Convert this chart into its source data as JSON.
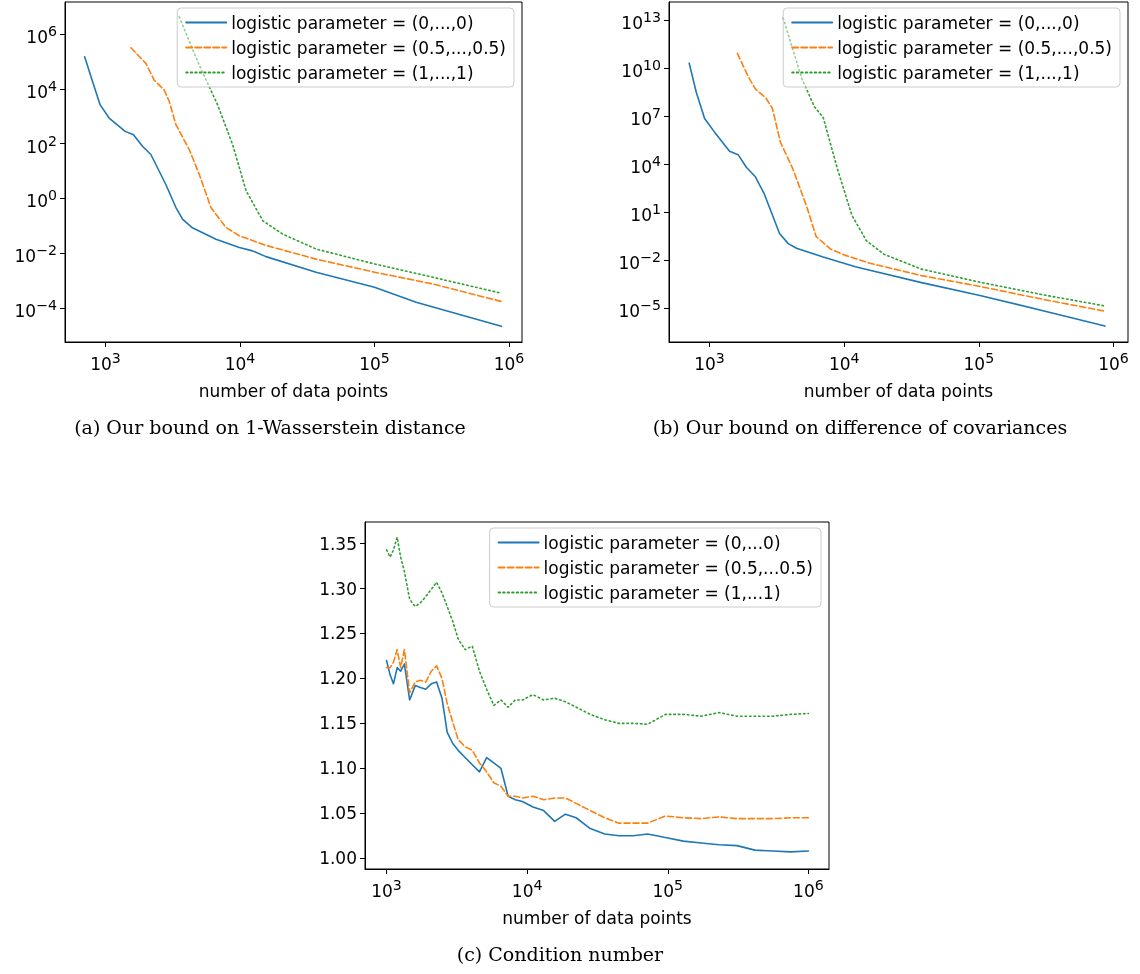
{
  "chart_data": [
    {
      "type": "line",
      "title": "(a) Our bound on 1-Wasserstein distance",
      "xlabel": "number of data points",
      "log": "xy",
      "legend": "top right",
      "xlim": [
        500,
        1250000
      ],
      "ylim": [
        5.6e-06,
        15000000
      ],
      "xticks": [
        {
          "value": 1000,
          "label": "10$^{3}$"
        },
        {
          "value": 10000,
          "label": "10$^{4}$"
        },
        {
          "value": 100000,
          "label": "10$^{5}$"
        },
        {
          "value": 1000000,
          "label": "10$^{6}$"
        }
      ],
      "yticks": [
        {
          "value": 0.0001,
          "label": "10$^{−4}$"
        },
        {
          "value": 0.01,
          "label": "10$^{−2}$"
        },
        {
          "value": 1,
          "label": "10$^{0}$"
        },
        {
          "value": 100,
          "label": "10$^{2}$"
        },
        {
          "value": 10000,
          "label": "10$^{4}$"
        },
        {
          "value": 1000000,
          "label": "10$^{6}$"
        }
      ],
      "series": [
        {
          "name": "logistic parameter = (0,...,0)",
          "color": "#1f77b4",
          "line_style": "solid",
          "x": [
            700,
            800,
            913,
            1065,
            1400,
            1615,
            1885,
            2175,
            2810,
            3340,
            3750,
            4390,
            6630,
            9890,
            12400,
            15600,
            36800,
            100000,
            204000,
            877000
          ],
          "values": [
            150000,
            19000,
            2600,
            860,
            280,
            210,
            80,
            40,
            3.2,
            0.46,
            0.17,
            0.086,
            0.032,
            0.016,
            0.012,
            0.0074,
            0.002,
            0.00056,
            0.00016,
            2.1e-05
          ]
        },
        {
          "name": "logistic parameter = (0.5,...,0.5)",
          "color": "#ff7f0e",
          "line_style": "dashed",
          "x": [
            1545,
            2000,
            2300,
            2735,
            2980,
            3340,
            4200,
            4980,
            6080,
            7870,
            9890,
            15600,
            36800,
            100000,
            272000,
            877000
          ],
          "values": [
            320000,
            85000,
            21000,
            9100,
            3470,
            490,
            60,
            7.5,
            0.46,
            0.086,
            0.043,
            0.019,
            0.006,
            0.002,
            0.00074,
            0.00017
          ]
        },
        {
          "name": "logistic parameter = (1,...,1)",
          "color": "#2ca02c",
          "line_style": "dotted",
          "x": [
            3530,
            4980,
            6820,
            8820,
            11100,
            14800,
            20800,
            36800,
            100000,
            272000,
            877000
          ],
          "values": [
            4300000,
            74000,
            2600,
            92,
            1.9,
            0.15,
            0.049,
            0.014,
            0.004,
            0.0013,
            0.00034
          ]
        }
      ]
    },
    {
      "type": "line",
      "title": "(b) Our bound on difference of covariances",
      "xlabel": "number of data points",
      "log": "xy",
      "legend": "top right",
      "xlim": [
        500,
        1280000
      ],
      "ylim": [
        7.8e-08,
        140000000000000
      ],
      "xticks": [
        {
          "value": 1000,
          "label": "10$^{3}$"
        },
        {
          "value": 10000,
          "label": "10$^{4}$"
        },
        {
          "value": 100000,
          "label": "10$^{5}$"
        },
        {
          "value": 1000000,
          "label": "10$^{6}$"
        }
      ],
      "yticks": [
        {
          "value": 1e-05,
          "label": "10$^{−5}$"
        },
        {
          "value": 0.01,
          "label": "10$^{−2}$"
        },
        {
          "value": 10,
          "label": "10$^{1}$"
        },
        {
          "value": 10000,
          "label": "10$^{4}$"
        },
        {
          "value": 10000000,
          "label": "10$^{7}$"
        },
        {
          "value": 10000000000,
          "label": "10$^{10}$"
        },
        {
          "value": 10000000000000,
          "label": "10$^{13}$"
        }
      ],
      "series": [
        {
          "name": "logistic parameter = (0,...,0)",
          "color": "#1f77b4",
          "line_style": "solid",
          "x": [
            706,
            798,
            919,
            1083,
            1408,
            1630,
            1876,
            2190,
            2550,
            3310,
            3840,
            4420,
            6980,
            12100,
            15500,
            37500,
            100000,
            310000,
            863000
          ],
          "values": [
            21000000000,
            310000000,
            7400000,
            1100000,
            66000,
            40000,
            6600,
            1660,
            140,
            0.47,
            0.11,
            0.057,
            0.016,
            0.004,
            0.0024,
            0.0004,
            6.6e-05,
            6.6e-06,
            7.7e-07
          ]
        },
        {
          "name": "logistic parameter = (0.5,...,0.5)",
          "color": "#ff7f0e",
          "line_style": "dashed",
          "x": [
            1610,
            1936,
            2190,
            2620,
            2930,
            3360,
            4160,
            5310,
            6180,
            7890,
            10070,
            15500,
            37500,
            100000,
            310000,
            863000
          ],
          "values": [
            85000000000,
            3100000000,
            510000000,
            140000000,
            31000000,
            240000,
            5100,
            18.6,
            0.31,
            0.051,
            0.021,
            0.0066,
            0.0011,
            0.00024,
            3.4e-05,
            6.6e-06
          ]
        },
        {
          "name": "logistic parameter = (1,...,1)",
          "color": "#2ca02c",
          "line_style": "dotted",
          "x": [
            3520,
            4840,
            6000,
            6980,
            8910,
            11400,
            14600,
            19700,
            37500,
            100000,
            310000,
            863000
          ],
          "values": [
            14000000000000,
            2400000000,
            40000000,
            8500000,
            5100,
            6.6,
            0.17,
            0.024,
            0.0028,
            0.00044,
            6.6e-05,
            1.4e-05
          ]
        }
      ]
    },
    {
      "type": "line",
      "title": "(c) Condition number",
      "xlabel": "number of data points",
      "log": "x",
      "legend": "top right",
      "xlim": [
        703,
        1400000
      ],
      "ylim": [
        0.988,
        1.374
      ],
      "xticks": [
        {
          "value": 1000,
          "label": "10$^{3}$"
        },
        {
          "value": 10000,
          "label": "10$^{4}$"
        },
        {
          "value": 100000,
          "label": "10$^{5}$"
        },
        {
          "value": 1000000,
          "label": "10$^{6}$"
        }
      ],
      "yticks": [
        {
          "value": 1,
          "label": "1.00"
        },
        {
          "value": 1.05,
          "label": "1.05"
        },
        {
          "value": 1.1,
          "label": "1.10"
        },
        {
          "value": 1.15,
          "label": "1.15"
        },
        {
          "value": 1.2,
          "label": "1.20"
        },
        {
          "value": 1.25,
          "label": "1.25"
        },
        {
          "value": 1.3,
          "label": "1.30"
        },
        {
          "value": 1.35,
          "label": "1.35"
        }
      ],
      "x": [
        1000,
        1060,
        1120,
        1190,
        1260,
        1340,
        1460,
        1600,
        1740,
        1900,
        2080,
        2270,
        2480,
        2700,
        2950,
        3230,
        3620,
        4070,
        4580,
        5150,
        5790,
        6510,
        7320,
        8230,
        9250,
        11000,
        13100,
        15700,
        18700,
        22300,
        28100,
        35600,
        45000,
        56800,
        71800,
        96200,
        128900,
        172700,
        231500,
        310000,
        416000,
        557000,
        747000,
        1000000
      ],
      "series": [
        {
          "name": "logistic parameter = (0,...0)",
          "color": "#1f77b4",
          "line_style": "solid",
          "values": [
            1.22,
            1.204,
            1.194,
            1.212,
            1.208,
            1.216,
            1.176,
            1.192,
            1.19,
            1.188,
            1.194,
            1.196,
            1.178,
            1.14,
            1.128,
            1.12,
            1.112,
            1.104,
            1.096,
            1.112,
            1.106,
            1.1,
            1.069,
            1.065,
            1.063,
            1.057,
            1.053,
            1.041,
            1.049,
            1.045,
            1.033,
            1.027,
            1.025,
            1.025,
            1.027,
            1.023,
            1.019,
            1.017,
            1.015,
            1.014,
            1.009,
            1.008,
            1.007,
            1.008
          ]
        },
        {
          "name": "logistic parameter = (0.5,...0.5)",
          "color": "#ff7f0e",
          "line_style": "dashed",
          "values": [
            1.212,
            1.212,
            1.218,
            1.232,
            1.212,
            1.232,
            1.184,
            1.196,
            1.198,
            1.196,
            1.208,
            1.214,
            1.2,
            1.172,
            1.152,
            1.132,
            1.124,
            1.12,
            1.106,
            1.096,
            1.084,
            1.08,
            1.069,
            1.069,
            1.067,
            1.069,
            1.065,
            1.067,
            1.067,
            1.061,
            1.053,
            1.045,
            1.039,
            1.039,
            1.039,
            1.047,
            1.045,
            1.044,
            1.046,
            1.044,
            1.044,
            1.044,
            1.045,
            1.045
          ]
        },
        {
          "name": "logistic parameter = (1,...1)",
          "color": "#2ca02c",
          "line_style": "dotted",
          "values": [
            1.343,
            1.335,
            1.343,
            1.357,
            1.335,
            1.319,
            1.288,
            1.28,
            1.284,
            1.291,
            1.299,
            1.307,
            1.295,
            1.28,
            1.264,
            1.244,
            1.232,
            1.236,
            1.208,
            1.188,
            1.17,
            1.176,
            1.168,
            1.176,
            1.176,
            1.182,
            1.176,
            1.178,
            1.174,
            1.168,
            1.16,
            1.154,
            1.15,
            1.15,
            1.149,
            1.16,
            1.16,
            1.158,
            1.162,
            1.158,
            1.158,
            1.158,
            1.16,
            1.161
          ]
        }
      ]
    }
  ]
}
